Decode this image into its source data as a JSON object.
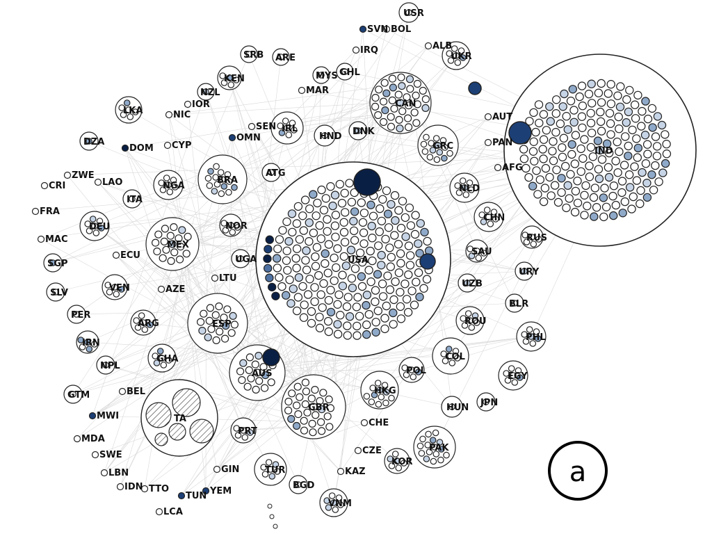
{
  "panel_label": "a",
  "colors": {
    "node_stroke": "#222222",
    "edge": "#d9d9d9",
    "shades": [
      "#ffffff",
      "#c6d4e6",
      "#8fa9c9",
      "#4f72a3",
      "#1c3f75",
      "#0a1f44"
    ]
  },
  "countries": [
    "USR",
    "SVN",
    "BOL",
    "IRQ",
    "ALB",
    "UKR",
    "SRB",
    "ARE",
    "MYS",
    "GHL",
    "KEN",
    "MAR",
    "CAN",
    "NZL",
    "IOR",
    "LKA",
    "NIC",
    "SEN",
    "IRL",
    "OMN",
    "HND",
    "DNK",
    "DZA",
    "DOM",
    "CYP",
    "GRC",
    "AUT",
    "PAN",
    "IND",
    "ZWE",
    "LAO",
    "CRI",
    "NGA",
    "BRA",
    "ATG",
    "AFG",
    "FRA",
    "ITA",
    "NLD",
    "DEU",
    "NOR",
    "CHN",
    "MAC",
    "MEX",
    "RUS",
    "ECU",
    "SAU",
    "SGP",
    "UGA",
    "USA",
    "URY",
    "SLV",
    "VEN",
    "AZE",
    "LTU",
    "UZB",
    "BLR",
    "PER",
    "ESP",
    "ROU",
    "ARG",
    "IRN",
    "PHL",
    "NPL",
    "GHA",
    "COL",
    "AUS",
    "POL",
    "EGY",
    "GTM",
    "BEL",
    "HKG",
    "HUN",
    "JPN",
    "MWI",
    "PRT",
    "GBR",
    "CHE",
    "TA",
    "MDA",
    "PAK",
    "SWE",
    "CZE",
    "KOR",
    "LBN",
    "GIN",
    "KAZ",
    "TUR",
    "IDN",
    "TTO",
    "BGD",
    "TUN",
    "YEM",
    "VNM",
    "LCA"
  ]
}
